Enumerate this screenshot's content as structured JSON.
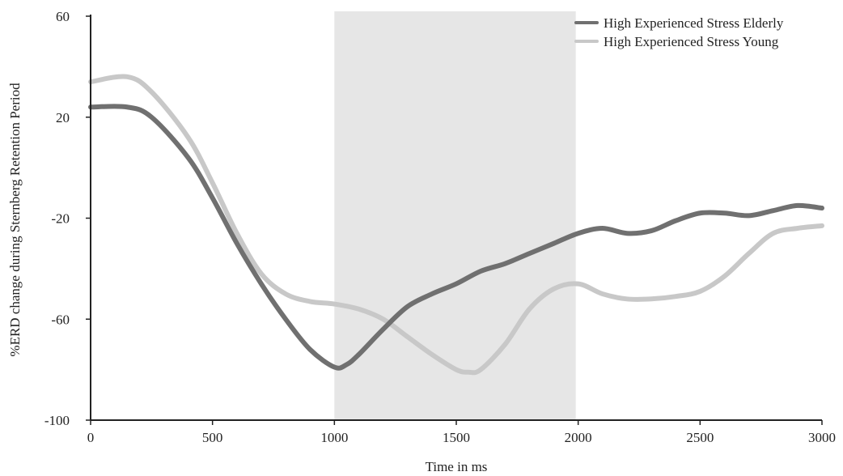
{
  "chart_data": {
    "type": "line",
    "xlabel": "Time in ms",
    "ylabel": "%ERD change during Sternberg Retention Period",
    "xlim": [
      0,
      3000
    ],
    "ylim": [
      -100,
      60
    ],
    "x_ticks": [
      0,
      500,
      1000,
      1500,
      2000,
      2500,
      3000
    ],
    "y_ticks": [
      -100,
      -60,
      -20,
      20,
      60
    ],
    "highlight_region": {
      "x_start": 1000,
      "x_end": 1990,
      "color": "#e6e6e6"
    },
    "grid": false,
    "legend_position": "top-right",
    "series": [
      {
        "name": "High Experienced Stress Elderly",
        "color": "#707070",
        "x": [
          0,
          150,
          250,
          400,
          500,
          600,
          700,
          800,
          900,
          1000,
          1050,
          1100,
          1200,
          1300,
          1400,
          1500,
          1600,
          1700,
          1800,
          1900,
          2000,
          2100,
          2200,
          2300,
          2400,
          2500,
          2600,
          2700,
          2800,
          2900,
          3000
        ],
        "y": [
          24,
          24,
          20,
          4,
          -12,
          -30,
          -46,
          -60,
          -72,
          -79,
          -78,
          -74,
          -64,
          -55,
          -50,
          -46,
          -41,
          -38,
          -34,
          -30,
          -26,
          -24,
          -26,
          -25,
          -21,
          -18,
          -18,
          -19,
          -17,
          -15,
          -16
        ]
      },
      {
        "name": "High Experienced Stress Young",
        "color": "#c8c8c8",
        "x": [
          0,
          150,
          250,
          400,
          500,
          600,
          700,
          800,
          900,
          1000,
          1100,
          1200,
          1300,
          1400,
          1500,
          1550,
          1600,
          1700,
          1800,
          1900,
          2000,
          2100,
          2200,
          2300,
          2400,
          2500,
          2600,
          2700,
          2800,
          2900,
          3000
        ],
        "y": [
          34,
          36,
          30,
          12,
          -6,
          -26,
          -42,
          -50,
          -53,
          -54,
          -56,
          -60,
          -67,
          -74,
          -80,
          -81,
          -80,
          -70,
          -56,
          -48,
          -46,
          -50,
          -52,
          -52,
          -51,
          -49,
          -43,
          -34,
          -26,
          -24,
          -23
        ]
      }
    ]
  }
}
